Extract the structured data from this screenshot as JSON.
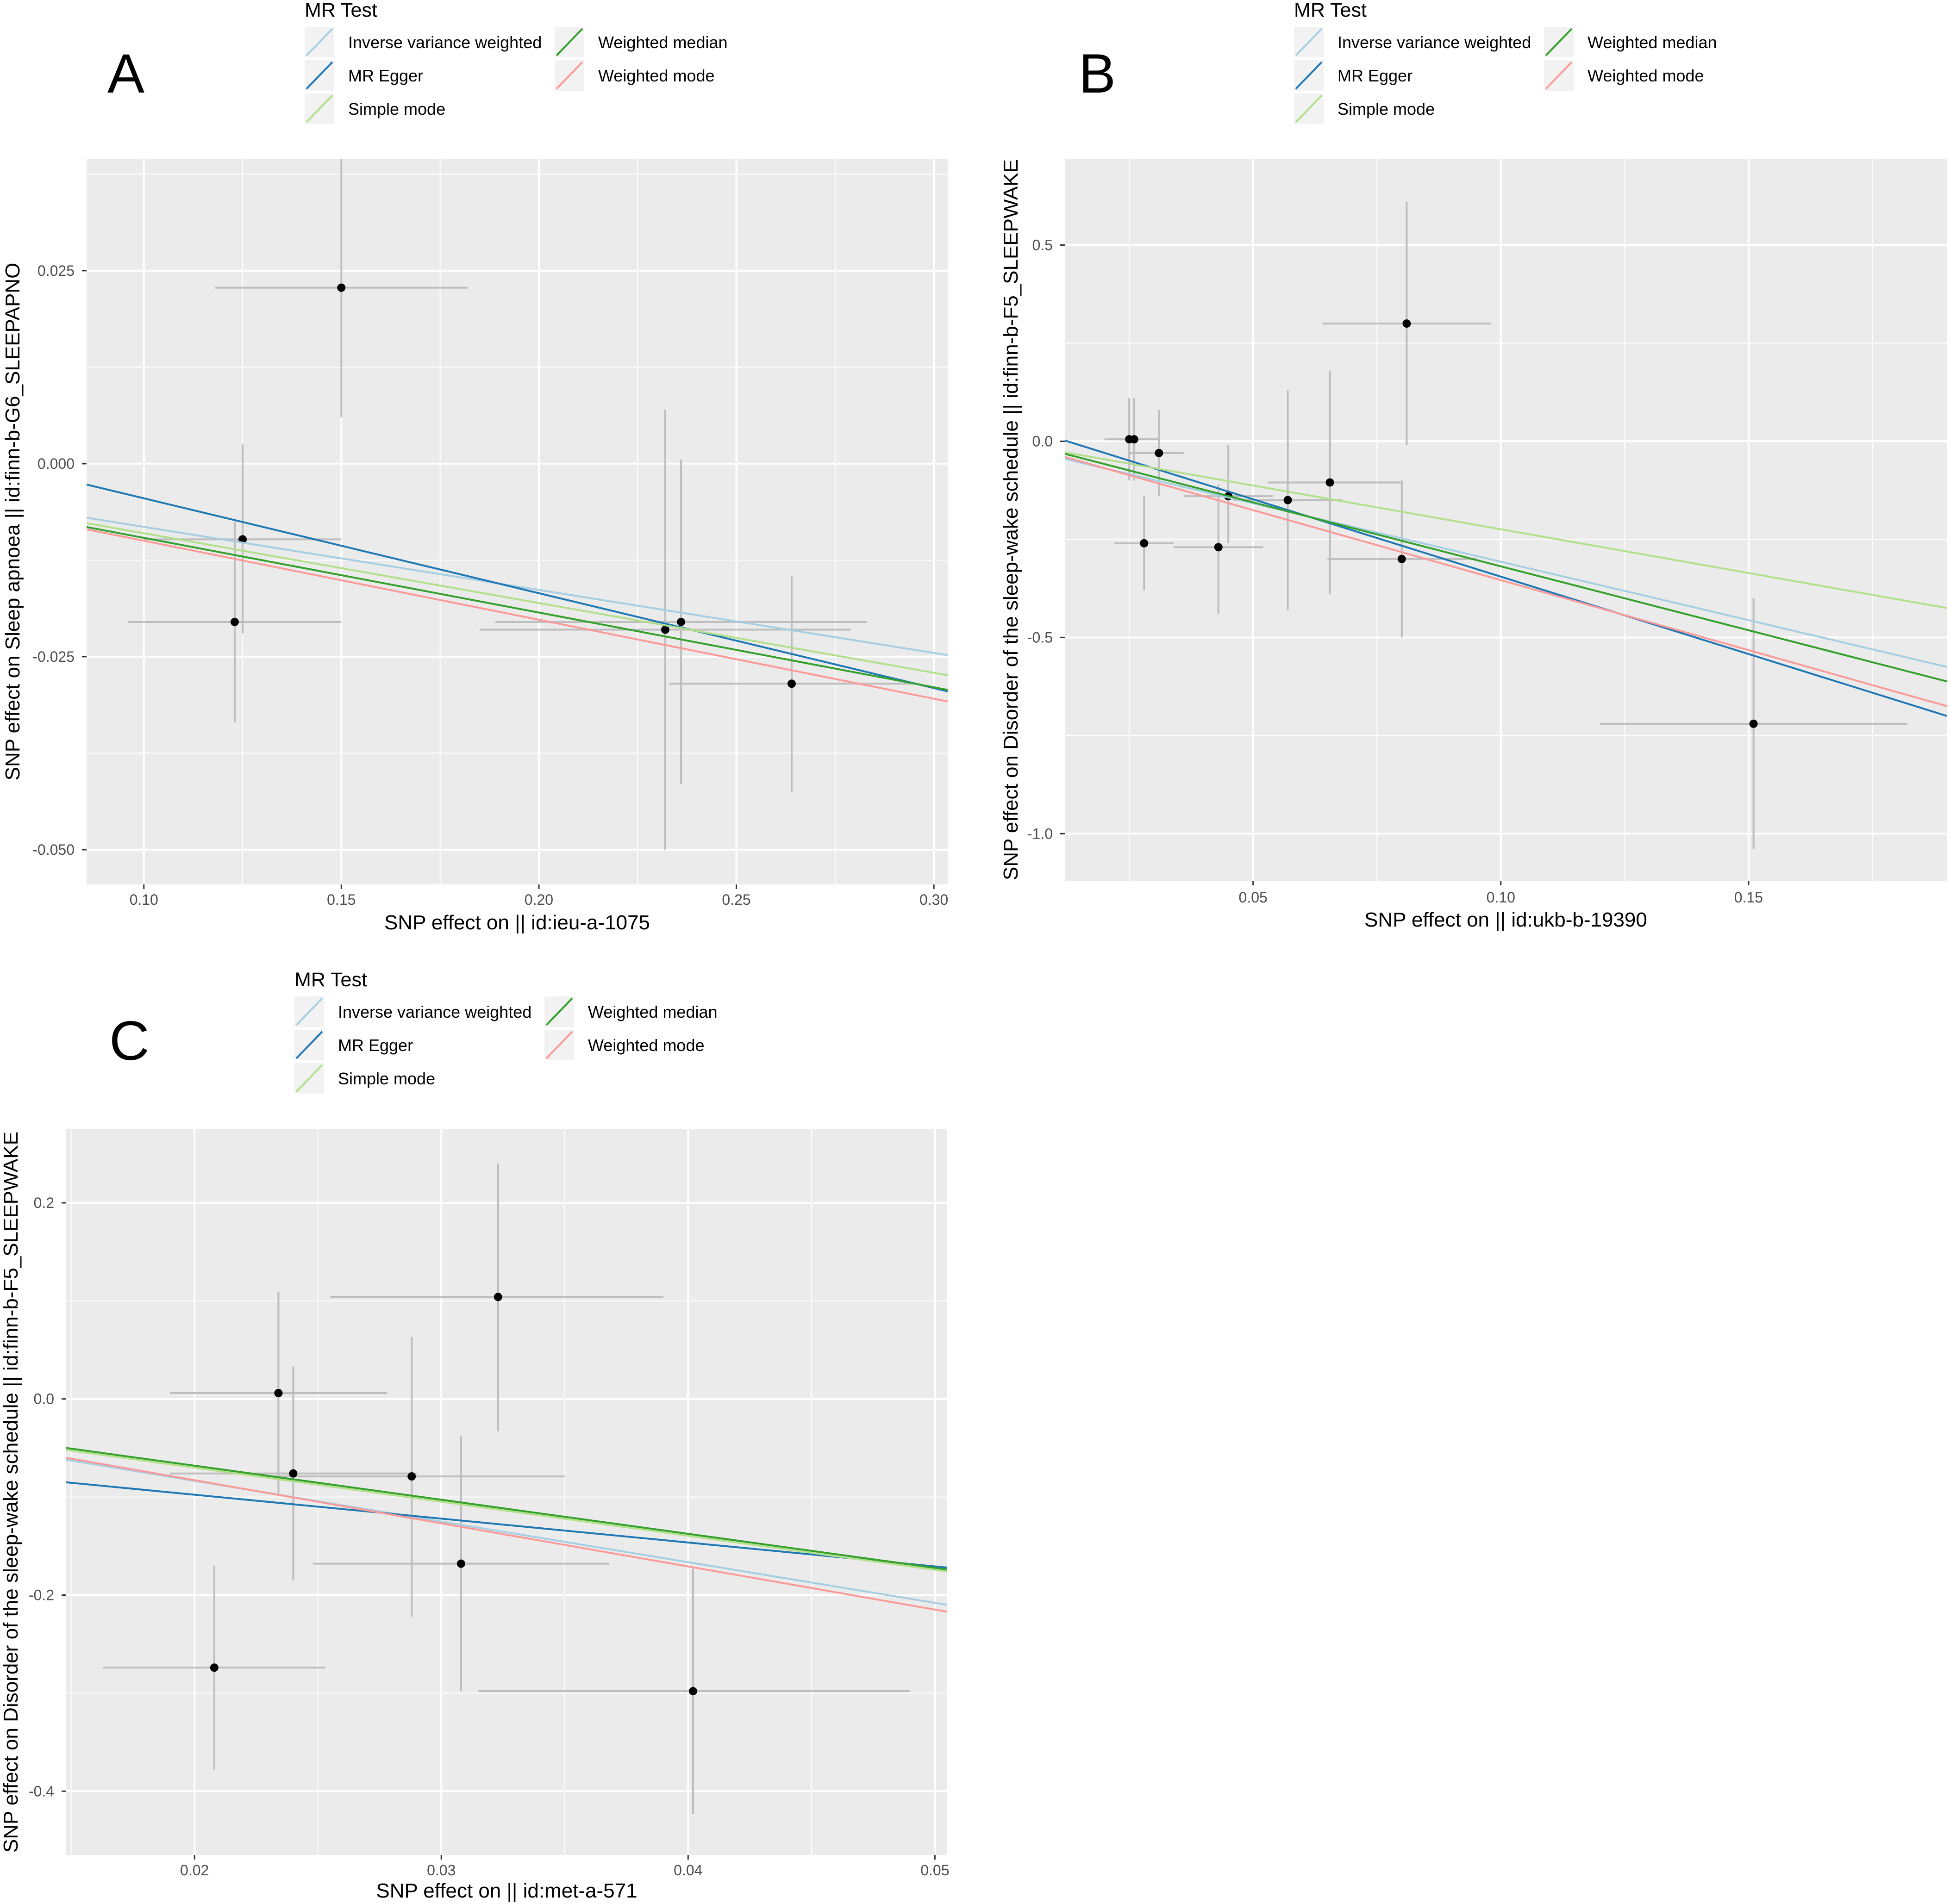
{
  "chart_data": [
    {
      "type": "scatter",
      "panel_label": "A",
      "xlabel": "SNP effect on  || id:ieu-a-1075",
      "ylabel": "SNP effect on Sleep apnoea || id:finn-b-G6_SLEEPAPNO",
      "xlim": [
        0.0855,
        0.3035
      ],
      "ylim": [
        -0.0545,
        0.0395
      ],
      "xticks": [
        0.1,
        0.15,
        0.2,
        0.25,
        0.3
      ],
      "xtick_labels": [
        "0.10",
        "0.15",
        "0.20",
        "0.25",
        "0.30"
      ],
      "yticks": [
        -0.05,
        -0.025,
        0.0,
        0.025
      ],
      "ytick_labels": [
        "-0.050",
        "-0.025",
        "0.000",
        "0.025"
      ],
      "legend": {
        "title": "MR Test",
        "entries": [
          "Inverse variance weighted",
          "MR Egger",
          "Simple mode",
          "Weighted median",
          "Weighted mode"
        ]
      },
      "points": [
        {
          "x": 0.15,
          "y": 0.0228,
          "x_lo": 0.118,
          "x_hi": 0.182,
          "y_lo": 0.006,
          "y_hi": 0.0395
        },
        {
          "x": 0.125,
          "y": -0.0098,
          "x_lo": 0.1,
          "x_hi": 0.15,
          "y_lo": -0.022,
          "y_hi": 0.0025
        },
        {
          "x": 0.123,
          "y": -0.0205,
          "x_lo": 0.096,
          "x_hi": 0.15,
          "y_lo": -0.0335,
          "y_hi": -0.0075
        },
        {
          "x": 0.232,
          "y": -0.0215,
          "x_lo": 0.185,
          "x_hi": 0.279,
          "y_lo": -0.05,
          "y_hi": 0.007
        },
        {
          "x": 0.236,
          "y": -0.0205,
          "x_lo": 0.189,
          "x_hi": 0.283,
          "y_lo": -0.0415,
          "y_hi": 0.0005
        },
        {
          "x": 0.264,
          "y": -0.0285,
          "x_lo": 0.233,
          "x_hi": 0.295,
          "y_lo": -0.0425,
          "y_hi": -0.0145
        }
      ],
      "series": [
        {
          "name": "Inverse variance weighted",
          "x": [
            0.0855,
            0.3035
          ],
          "y": [
            -0.007,
            -0.0248
          ]
        },
        {
          "name": "MR Egger",
          "x": [
            0.0855,
            0.3035
          ],
          "y": [
            -0.0027,
            -0.0295
          ]
        },
        {
          "name": "Simple mode",
          "x": [
            0.0855,
            0.3035
          ],
          "y": [
            -0.0077,
            -0.0274
          ]
        },
        {
          "name": "Weighted median",
          "x": [
            0.0855,
            0.3035
          ],
          "y": [
            -0.0082,
            -0.0293
          ]
        },
        {
          "name": "Weighted mode",
          "x": [
            0.0855,
            0.3035
          ],
          "y": [
            -0.0085,
            -0.0308
          ]
        }
      ]
    },
    {
      "type": "scatter",
      "panel_label": "B",
      "xlabel": "SNP effect on  || id:ukb-b-19390",
      "ylabel": "SNP effect on Disorder of the sleep-wake schedule || id:finn-b-F5_SLEEPWAKE",
      "xlim": [
        0.012,
        0.19
      ],
      "ylim": [
        -1.12,
        0.72
      ],
      "xticks": [
        0.05,
        0.1,
        0.15
      ],
      "xtick_labels": [
        "0.05",
        "0.10",
        "0.15"
      ],
      "yticks": [
        -1.0,
        -0.5,
        0.0,
        0.5
      ],
      "ytick_labels": [
        "-1.0",
        "-0.5",
        "0.0",
        "0.5"
      ],
      "legend": {
        "title": "MR Test",
        "entries": [
          "Inverse variance weighted",
          "MR Egger",
          "Simple mode",
          "Weighted median",
          "Weighted mode"
        ]
      },
      "points": [
        {
          "x": 0.081,
          "y": 0.3,
          "x_lo": 0.064,
          "x_hi": 0.098,
          "y_lo": -0.01,
          "y_hi": 0.61
        },
        {
          "x": 0.025,
          "y": 0.005,
          "x_lo": 0.02,
          "x_hi": 0.031,
          "y_lo": -0.1,
          "y_hi": 0.11
        },
        {
          "x": 0.026,
          "y": 0.005,
          "x_lo": 0.021,
          "x_hi": 0.031,
          "y_lo": -0.1,
          "y_hi": 0.11
        },
        {
          "x": 0.031,
          "y": -0.03,
          "x_lo": 0.025,
          "x_hi": 0.036,
          "y_lo": -0.14,
          "y_hi": 0.08
        },
        {
          "x": 0.028,
          "y": -0.26,
          "x_lo": 0.022,
          "x_hi": 0.034,
          "y_lo": -0.38,
          "y_hi": -0.14
        },
        {
          "x": 0.045,
          "y": -0.14,
          "x_lo": 0.036,
          "x_hi": 0.054,
          "y_lo": -0.26,
          "y_hi": -0.01
        },
        {
          "x": 0.043,
          "y": -0.27,
          "x_lo": 0.034,
          "x_hi": 0.052,
          "y_lo": -0.44,
          "y_hi": -0.11
        },
        {
          "x": 0.057,
          "y": -0.15,
          "x_lo": 0.046,
          "x_hi": 0.068,
          "y_lo": -0.43,
          "y_hi": 0.13
        },
        {
          "x": 0.0655,
          "y": -0.105,
          "x_lo": 0.053,
          "x_hi": 0.08,
          "y_lo": -0.39,
          "y_hi": 0.18
        },
        {
          "x": 0.08,
          "y": -0.3,
          "x_lo": 0.065,
          "x_hi": 0.095,
          "y_lo": -0.5,
          "y_hi": -0.1
        },
        {
          "x": 0.151,
          "y": -0.72,
          "x_lo": 0.12,
          "x_hi": 0.182,
          "y_lo": -1.04,
          "y_hi": -0.4
        }
      ],
      "series": [
        {
          "name": "Inverse variance weighted",
          "x": [
            0.012,
            0.19
          ],
          "y": [
            -0.045,
            -0.575
          ]
        },
        {
          "name": "MR Egger",
          "x": [
            0.012,
            0.19
          ],
          "y": [
            0.002,
            -0.7
          ]
        },
        {
          "name": "Simple mode",
          "x": [
            0.012,
            0.19
          ],
          "y": [
            -0.028,
            -0.425
          ]
        },
        {
          "name": "Weighted median",
          "x": [
            0.012,
            0.19
          ],
          "y": [
            -0.032,
            -0.612
          ]
        },
        {
          "name": "Weighted mode",
          "x": [
            0.012,
            0.19
          ],
          "y": [
            -0.04,
            -0.675
          ]
        }
      ]
    },
    {
      "type": "scatter",
      "panel_label": "C",
      "xlabel": "SNP effect on  || id:met-a-571",
      "ylabel": "SNP effect on Disorder of the sleep-wake schedule || id:finn-b-F5_SLEEPWAKE",
      "xlim": [
        0.0148,
        0.0505
      ],
      "ylim": [
        -0.465,
        0.275
      ],
      "xticks": [
        0.02,
        0.03,
        0.04,
        0.05
      ],
      "xtick_labels": [
        "0.02",
        "0.03",
        "0.04",
        "0.05"
      ],
      "yticks": [
        -0.4,
        -0.2,
        0.0,
        0.2
      ],
      "ytick_labels": [
        "-0.4",
        "-0.2",
        "0.0",
        "0.2"
      ],
      "legend": {
        "title": "MR Test",
        "entries": [
          "Inverse variance weighted",
          "MR Egger",
          "Simple mode",
          "Weighted median",
          "Weighted mode"
        ]
      },
      "points": [
        {
          "x": 0.0323,
          "y": 0.104,
          "x_lo": 0.0255,
          "x_hi": 0.039,
          "y_lo": -0.033,
          "y_hi": 0.24
        },
        {
          "x": 0.0234,
          "y": 0.006,
          "x_lo": 0.019,
          "x_hi": 0.0278,
          "y_lo": -0.097,
          "y_hi": 0.109
        },
        {
          "x": 0.024,
          "y": -0.076,
          "x_lo": 0.019,
          "x_hi": 0.029,
          "y_lo": -0.185,
          "y_hi": 0.033
        },
        {
          "x": 0.0288,
          "y": -0.079,
          "x_lo": 0.0225,
          "x_hi": 0.035,
          "y_lo": -0.222,
          "y_hi": 0.063
        },
        {
          "x": 0.0308,
          "y": -0.168,
          "x_lo": 0.0248,
          "x_hi": 0.0368,
          "y_lo": -0.298,
          "y_hi": -0.038
        },
        {
          "x": 0.0208,
          "y": -0.274,
          "x_lo": 0.0163,
          "x_hi": 0.0253,
          "y_lo": -0.378,
          "y_hi": -0.17
        },
        {
          "x": 0.0402,
          "y": -0.298,
          "x_lo": 0.0315,
          "x_hi": 0.049,
          "y_lo": -0.423,
          "y_hi": -0.173
        }
      ],
      "series": [
        {
          "name": "Inverse variance weighted",
          "x": [
            0.0148,
            0.0505
          ],
          "y": [
            -0.062,
            -0.21
          ]
        },
        {
          "name": "MR Egger",
          "x": [
            0.0148,
            0.0505
          ],
          "y": [
            -0.085,
            -0.172
          ]
        },
        {
          "name": "Simple mode",
          "x": [
            0.0148,
            0.0505
          ],
          "y": [
            -0.052,
            -0.176
          ]
        },
        {
          "name": "Weighted median",
          "x": [
            0.0148,
            0.0505
          ],
          "y": [
            -0.05,
            -0.174
          ]
        },
        {
          "name": "Weighted mode",
          "x": [
            0.0148,
            0.0505
          ],
          "y": [
            -0.06,
            -0.217
          ]
        }
      ]
    }
  ],
  "colors": {
    "Inverse variance weighted": "#a6cee3",
    "MR Egger": "#1f78b4",
    "Simple mode": "#b2df8a",
    "Weighted median": "#33a02c",
    "Weighted mode": "#fb9a99",
    "panel_background": "#ebebeb",
    "gridline": "#ffffff",
    "errorbar": "#bdbdbd",
    "point": "#000000",
    "legend_key_background": "#f2f2f2"
  }
}
